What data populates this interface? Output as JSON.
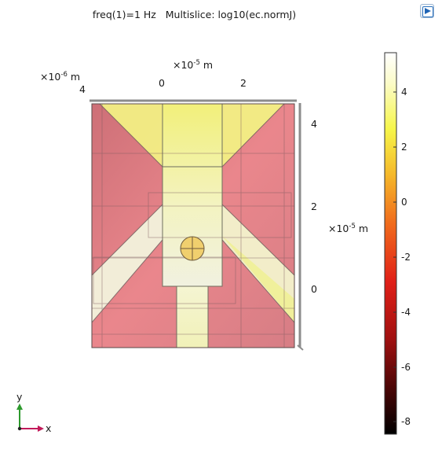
{
  "plot": {
    "title": "freq(1)=1 Hz   Multislice: log10(ec.normJ)",
    "y_axis_prefix": "×10",
    "y_axis_exp": "-6",
    "y_axis_unit": " m",
    "y_axis_tick": "4",
    "x_axis_prefix": "×10",
    "x_axis_exp": "-5",
    "x_axis_unit": " m",
    "x_ticks": [
      "0",
      "2"
    ],
    "z_axis_prefix": "×10",
    "z_axis_exp": "-5",
    "z_axis_unit": " m",
    "z_ticks": [
      "4",
      "2",
      "0"
    ]
  },
  "colorbar": {
    "ticks": [
      "4",
      "2",
      "0",
      "-2",
      "-4",
      "-6",
      "-8"
    ],
    "min": -8.6,
    "max": 5.5
  },
  "triad": {
    "y_label": "y",
    "x_label": "x"
  },
  "colors": {
    "axis_y": "#2e9a2e",
    "axis_x": "#c21a5a",
    "slice_red": "#e97c82",
    "slice_yellow": "#f2f290"
  },
  "icons": {
    "corner_button": "zoom-extents-icon"
  }
}
